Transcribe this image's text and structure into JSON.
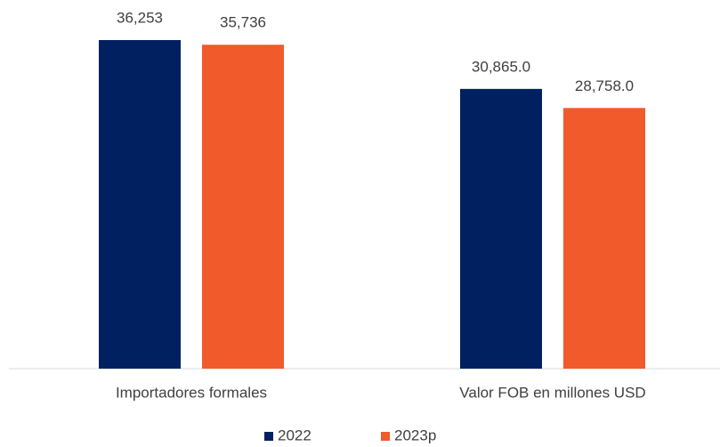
{
  "chart_data": {
    "type": "bar",
    "categories": [
      "Importadores formales",
      "Valor FOB en millones USD"
    ],
    "series": [
      {
        "name": "2022",
        "color": "#002060",
        "values": [
          36253,
          30865.0
        ],
        "value_labels": [
          "36,253",
          "30,865.0"
        ]
      },
      {
        "name": "2023p",
        "color": "#f15a2b",
        "values": [
          35736,
          28758.0
        ],
        "value_labels": [
          "35,736",
          "28,758.0"
        ]
      }
    ],
    "legend": "bottom"
  }
}
